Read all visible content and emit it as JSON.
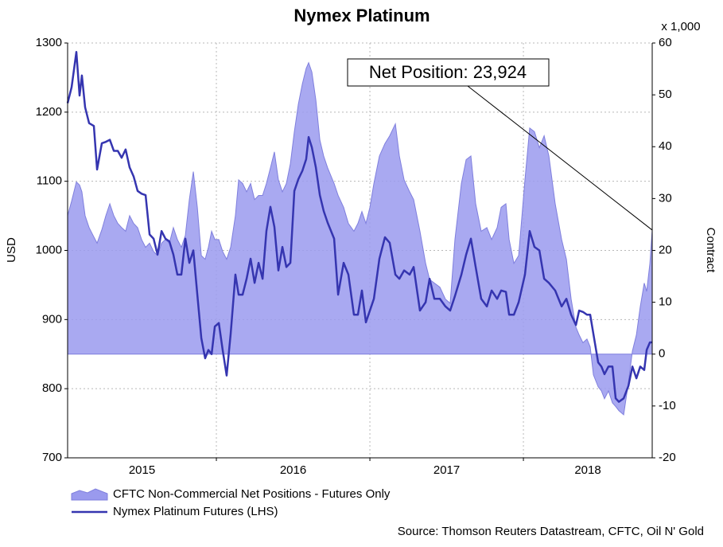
{
  "chart_data": {
    "type": "line",
    "title": "Nymex Platinum",
    "ylabel": "USD",
    "y2label": "Contract",
    "y2unit": "x 1,000",
    "source": "Source: Thomson Reuters Datastream, CFTC, Oil N' Gold",
    "annotation": "Net Position: 23,924",
    "grid": true,
    "xlim": [
      2015.031,
      2018.839
    ],
    "xticks": [
      2015,
      2016,
      2017,
      2018
    ],
    "ylim": [
      700,
      1300
    ],
    "yticks": [
      700,
      800,
      900,
      1000,
      1100,
      1200,
      1300
    ],
    "y2lim": [
      -20,
      60
    ],
    "y2ticks": [
      -20,
      -10,
      0,
      10,
      20,
      30,
      40,
      50,
      60
    ],
    "x": [
      2015.031,
      2015.057,
      2015.088,
      2015.109,
      2015.124,
      2015.145,
      2015.171,
      2015.202,
      2015.223,
      2015.254,
      2015.28,
      2015.306,
      2015.332,
      2015.358,
      2015.383,
      2015.409,
      2015.435,
      2015.461,
      2015.487,
      2015.513,
      2015.539,
      2015.565,
      2015.591,
      2015.617,
      2015.643,
      2015.668,
      2015.694,
      2015.72,
      2015.746,
      2015.772,
      2015.798,
      2015.824,
      2015.85,
      2015.876,
      2015.902,
      2015.927,
      2015.948,
      2015.969,
      2015.99,
      2016.016,
      2016.041,
      2016.067,
      2016.093,
      2016.124,
      2016.145,
      2016.171,
      2016.197,
      2016.223,
      2016.249,
      2016.275,
      2016.301,
      2016.326,
      2016.352,
      2016.378,
      2016.404,
      2016.43,
      2016.456,
      2016.482,
      2016.508,
      2016.534,
      2016.56,
      2016.585,
      2016.601,
      2016.622,
      2016.648,
      2016.674,
      2016.699,
      2016.725,
      2016.767,
      2016.793,
      2016.829,
      2016.86,
      2016.896,
      2016.922,
      2016.948,
      2016.974,
      2017.0,
      2017.026,
      2017.062,
      2017.098,
      2017.129,
      2017.166,
      2017.192,
      2017.223,
      2017.259,
      2017.285,
      2017.326,
      2017.363,
      2017.389,
      2017.42,
      2017.456,
      2017.492,
      2017.523,
      2017.554,
      2017.596,
      2017.627,
      2017.658,
      2017.689,
      2017.725,
      2017.762,
      2017.793,
      2017.829,
      2017.855,
      2017.886,
      2017.907,
      2017.938,
      2017.969,
      2018.01,
      2018.041,
      2018.072,
      2018.104,
      2018.135,
      2018.166,
      2018.207,
      2018.249,
      2018.28,
      2018.311,
      2018.342,
      2018.363,
      2018.388,
      2018.414,
      2018.435,
      2018.456,
      2018.487,
      2018.508,
      2018.528,
      2018.554,
      2018.58,
      2018.601,
      2018.622,
      2018.653,
      2018.684,
      2018.71,
      2018.736,
      2018.761,
      2018.787,
      2018.803,
      2018.824,
      2018.839
    ],
    "series": [
      {
        "name": "CFTC Non-Commercial Net Positions - Futures Only",
        "type": "area",
        "axis": "y2",
        "color": "#9a9aee",
        "edge": "#7f7fdd",
        "values": [
          26.7,
          29.5,
          33.2,
          32.6,
          31.3,
          26.7,
          24.4,
          22.6,
          21.4,
          24.0,
          26.7,
          29.0,
          26.7,
          25.2,
          24.4,
          23.7,
          26.7,
          25.2,
          24.4,
          22.1,
          20.6,
          21.4,
          19.8,
          19.0,
          21.4,
          22.1,
          21.4,
          24.4,
          22.1,
          20.6,
          22.9,
          29.8,
          35.2,
          28.3,
          19.0,
          18.3,
          20.6,
          23.7,
          22.1,
          22.1,
          19.8,
          18.3,
          20.6,
          26.7,
          33.6,
          32.9,
          31.3,
          32.9,
          29.8,
          30.6,
          30.6,
          32.9,
          35.9,
          39.0,
          33.6,
          31.3,
          32.9,
          36.7,
          42.9,
          48.2,
          52.1,
          55.1,
          56.2,
          54.4,
          49.0,
          41.3,
          38.2,
          35.9,
          32.9,
          30.6,
          28.3,
          25.2,
          23.7,
          25.2,
          27.5,
          25.2,
          28.3,
          32.9,
          38.2,
          40.6,
          42.1,
          44.4,
          38.2,
          33.6,
          31.3,
          29.8,
          23.7,
          17.5,
          14.4,
          13.7,
          12.9,
          10.6,
          9.8,
          22.1,
          32.9,
          37.5,
          38.2,
          29.0,
          23.7,
          24.4,
          22.1,
          24.4,
          28.3,
          29.0,
          22.1,
          17.5,
          19.0,
          33.6,
          43.6,
          42.9,
          39.8,
          42.1,
          38.2,
          29.0,
          22.1,
          18.3,
          10.6,
          5.2,
          3.7,
          2.2,
          2.9,
          1.4,
          -4.0,
          -6.3,
          -7.1,
          -8.6,
          -7.1,
          -9.4,
          -10.1,
          -10.9,
          -11.7,
          -5.5,
          0.6,
          3.7,
          9.1,
          13.7,
          12.1,
          17.5,
          23.924
        ]
      },
      {
        "name": "Nymex Platinum Futures (LHS)",
        "type": "line",
        "axis": "y",
        "color": "#3535b0",
        "values": [
          1213,
          1236,
          1287,
          1224,
          1253,
          1207,
          1184,
          1180,
          1117,
          1155,
          1157,
          1160,
          1144,
          1144,
          1134,
          1146,
          1120,
          1107,
          1086,
          1082,
          1080,
          1023,
          1017,
          994,
          1028,
          1017,
          1013,
          994,
          965,
          965,
          1017,
          982,
          1000,
          936,
          873,
          844,
          856,
          850,
          890,
          895,
          856,
          819,
          879,
          965,
          936,
          936,
          959,
          988,
          953,
          982,
          959,
          1028,
          1063,
          1034,
          971,
          1005,
          976,
          982,
          1086,
          1103,
          1115,
          1132,
          1164,
          1149,
          1120,
          1080,
          1057,
          1040,
          1017,
          936,
          982,
          965,
          907,
          907,
          942,
          896,
          913,
          930,
          988,
          1019,
          1011,
          965,
          959,
          971,
          965,
          976,
          913,
          925,
          959,
          930,
          930,
          919,
          913,
          934,
          965,
          994,
          1017,
          976,
          930,
          919,
          942,
          930,
          942,
          940,
          907,
          907,
          925,
          965,
          1028,
          1005,
          1000,
          959,
          953,
          942,
          919,
          930,
          907,
          892,
          913,
          911,
          907,
          907,
          879,
          838,
          832,
          821,
          832,
          832,
          786,
          781,
          786,
          804,
          832,
          815,
          832,
          827,
          856,
          867,
          867
        ]
      }
    ]
  }
}
